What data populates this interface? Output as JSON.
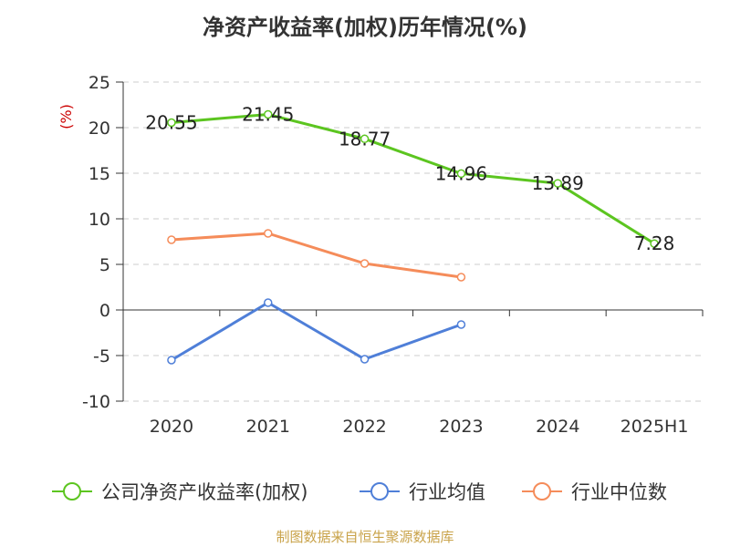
{
  "title": "净资产收益率(加权)历年情况(%)",
  "footer": "制图数据来自恒生聚源数据库",
  "chart_data": {
    "type": "line",
    "title": "净资产收益率(加权)历年情况(%)",
    "ylabel": "(%)",
    "xlabel": "",
    "categories": [
      "2020",
      "2021",
      "2022",
      "2023",
      "2024",
      "2025H1"
    ],
    "yticks": [
      "25",
      "20",
      "15",
      "10",
      "5",
      "0",
      "-5",
      "-10"
    ],
    "ylim": [
      -10,
      25
    ],
    "grid": true,
    "legend_position": "bottom",
    "series": [
      {
        "name": "公司净资产收益率(加权)",
        "color": "#5cc520",
        "values": [
          20.55,
          21.45,
          18.77,
          14.96,
          13.89,
          7.28
        ],
        "labels": [
          "20.55",
          "21.45",
          "18.77",
          "14.96",
          "13.89",
          "7.28"
        ]
      },
      {
        "name": "行业均值",
        "color": "#4f7fd8",
        "values": [
          -5.5,
          0.8,
          -5.4,
          -1.6,
          null,
          null
        ]
      },
      {
        "name": "行业中位数",
        "color": "#f58c5a",
        "values": [
          7.7,
          8.4,
          5.1,
          3.6,
          null,
          null
        ]
      }
    ]
  }
}
